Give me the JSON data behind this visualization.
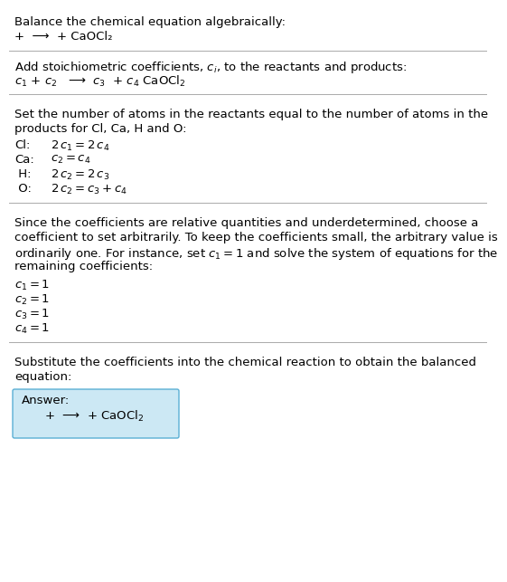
{
  "title": "Balance the chemical equation algebraically:",
  "section1_line": "+  ⟶  + CaOCl₂",
  "section2_header": "Add stoichiometric coefficients, $c_i$, to the reactants and products:",
  "section2_line": "$c_1$ + $c_2$   ⟶  $c_3$  + $c_4$ CaOCl$_2$",
  "section3_lines": [
    [
      "Cl:",
      "$2\\,c_1 = 2\\,c_4$"
    ],
    [
      "Ca:",
      "$c_2 = c_4$"
    ],
    [
      " H:",
      "$2\\,c_2 = 2\\,c_3$"
    ],
    [
      " O:",
      "$2\\,c_2 = c_3 + c_4$"
    ]
  ],
  "section4_para": [
    "Since the coefficients are relative quantities and underdetermined, choose a",
    "coefficient to set arbitrarily. To keep the coefficients small, the arbitrary value is",
    "ordinarily one. For instance, set $c_1 = 1$ and solve the system of equations for the",
    "remaining coefficients:"
  ],
  "section4_lines": [
    "$c_1 = 1$",
    "$c_2 = 1$",
    "$c_3 = 1$",
    "$c_4 = 1$"
  ],
  "section5_para": [
    "Substitute the coefficients into the chemical reaction to obtain the balanced",
    "equation:"
  ],
  "answer_label": "Answer:",
  "answer_line": "      +  ⟶  + CaOCl$_2$",
  "bg_color": "#ffffff",
  "text_color": "#000000",
  "answer_box_facecolor": "#cce8f4",
  "answer_box_edgecolor": "#5aafd4",
  "separator_color": "#aaaaaa",
  "fs": 9.5
}
